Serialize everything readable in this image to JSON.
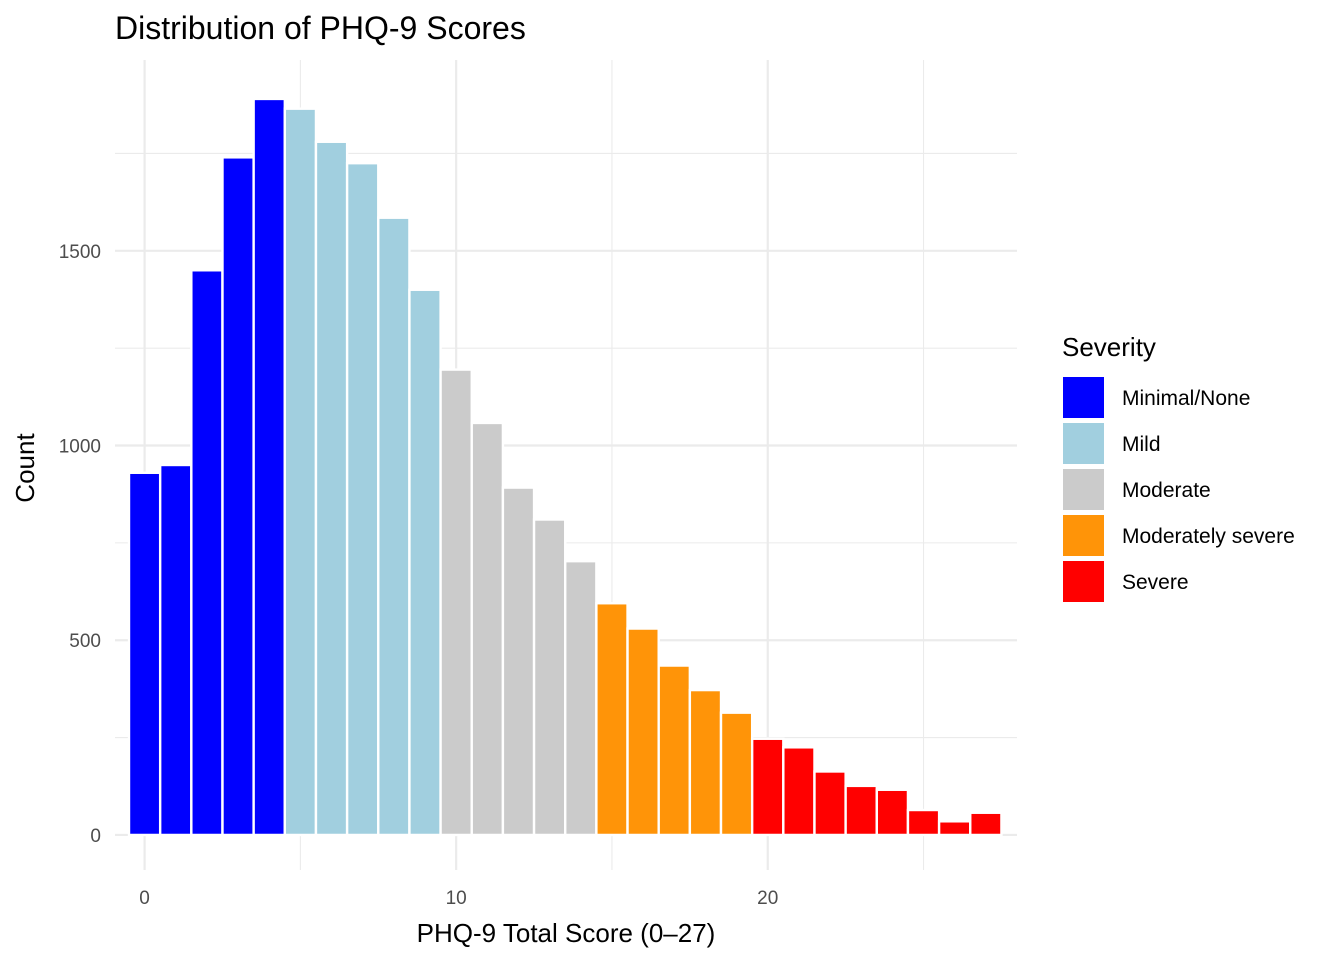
{
  "chart_data": {
    "type": "bar",
    "title": "Distribution of PHQ-9 Scores",
    "xlabel": "PHQ-9 Total Score (0–27)",
    "ylabel": "Count",
    "xlim": [
      -0.95,
      28.0
    ],
    "ylim": [
      -90,
      1990
    ],
    "x_ticks": [
      0,
      10,
      20
    ],
    "y_ticks": [
      0,
      500,
      1000,
      1500
    ],
    "grid": true,
    "legend_position": "right",
    "legend_title": "Severity",
    "series": [
      {
        "name": "Minimal/None",
        "color": "#0000ff"
      },
      {
        "name": "Mild",
        "color": "#a1cfdf"
      },
      {
        "name": "Moderate",
        "color": "#cbcbcb"
      },
      {
        "name": "Moderately severe",
        "color": "#ff9408"
      },
      {
        "name": "Severe",
        "color": "#ff0000"
      }
    ],
    "bars": [
      {
        "x": 0,
        "value": 930,
        "group": 0
      },
      {
        "x": 1,
        "value": 950,
        "group": 0
      },
      {
        "x": 2,
        "value": 1450,
        "group": 0
      },
      {
        "x": 3,
        "value": 1740,
        "group": 0
      },
      {
        "x": 4,
        "value": 1890,
        "group": 0
      },
      {
        "x": 5,
        "value": 1865,
        "group": 1
      },
      {
        "x": 6,
        "value": 1780,
        "group": 1
      },
      {
        "x": 7,
        "value": 1725,
        "group": 1
      },
      {
        "x": 8,
        "value": 1585,
        "group": 1
      },
      {
        "x": 9,
        "value": 1400,
        "group": 1
      },
      {
        "x": 10,
        "value": 1195,
        "group": 2
      },
      {
        "x": 11,
        "value": 1058,
        "group": 2
      },
      {
        "x": 12,
        "value": 892,
        "group": 2
      },
      {
        "x": 13,
        "value": 810,
        "group": 2
      },
      {
        "x": 14,
        "value": 703,
        "group": 2
      },
      {
        "x": 15,
        "value": 595,
        "group": 3
      },
      {
        "x": 16,
        "value": 530,
        "group": 3
      },
      {
        "x": 17,
        "value": 435,
        "group": 3
      },
      {
        "x": 18,
        "value": 372,
        "group": 3
      },
      {
        "x": 19,
        "value": 314,
        "group": 3
      },
      {
        "x": 20,
        "value": 247,
        "group": 4
      },
      {
        "x": 21,
        "value": 225,
        "group": 4
      },
      {
        "x": 22,
        "value": 163,
        "group": 4
      },
      {
        "x": 23,
        "value": 126,
        "group": 4
      },
      {
        "x": 24,
        "value": 116,
        "group": 4
      },
      {
        "x": 25,
        "value": 64,
        "group": 4
      },
      {
        "x": 26,
        "value": 35,
        "group": 4
      },
      {
        "x": 27,
        "value": 57,
        "group": 4
      }
    ]
  }
}
